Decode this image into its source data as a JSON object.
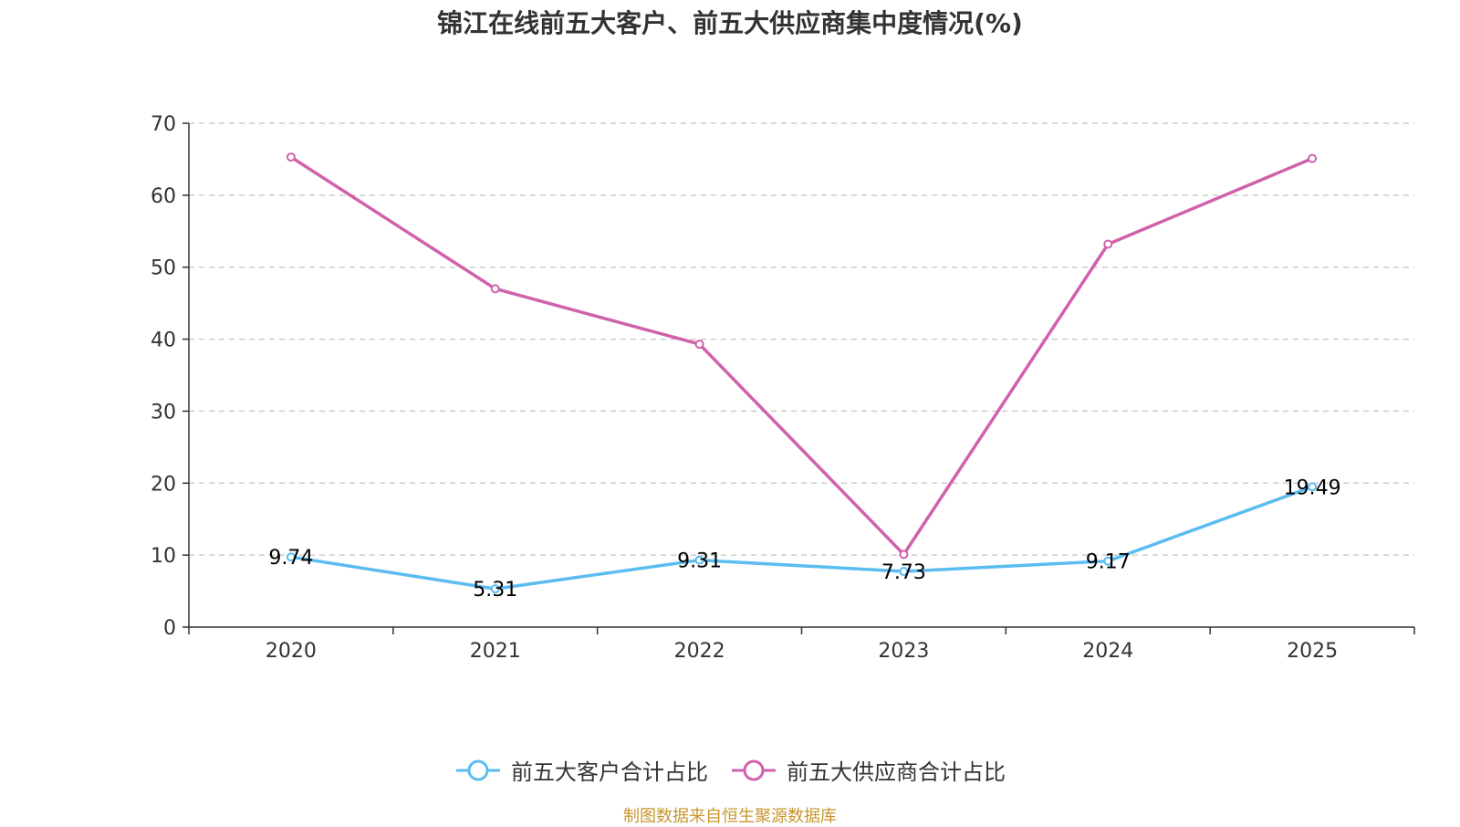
{
  "chart_data": {
    "type": "line",
    "title": "锦江在线前五大客户、前五大供应商集中度情况(%)",
    "categories": [
      "2020",
      "2021",
      "2022",
      "2023",
      "2024",
      "2025"
    ],
    "ylim": [
      0,
      70
    ],
    "yticks": [
      0,
      10,
      20,
      30,
      40,
      50,
      60,
      70
    ],
    "grid": true,
    "legend_position": "bottom",
    "series": [
      {
        "name": "前五大客户合计占比",
        "color": "#5bbcf0",
        "values": [
          9.74,
          5.31,
          9.31,
          7.73,
          9.17,
          19.49
        ],
        "labels": [
          "9.74",
          "5.31",
          "9.31",
          "7.73",
          "9.17",
          "19.49"
        ],
        "show_labels": true
      },
      {
        "name": "前五大供应商合计占比",
        "color": "#d062ab",
        "values": [
          65.3,
          47.0,
          39.3,
          10.1,
          53.2,
          65.1
        ],
        "show_labels": false
      }
    ]
  },
  "source": "制图数据来自恒生聚源数据库"
}
